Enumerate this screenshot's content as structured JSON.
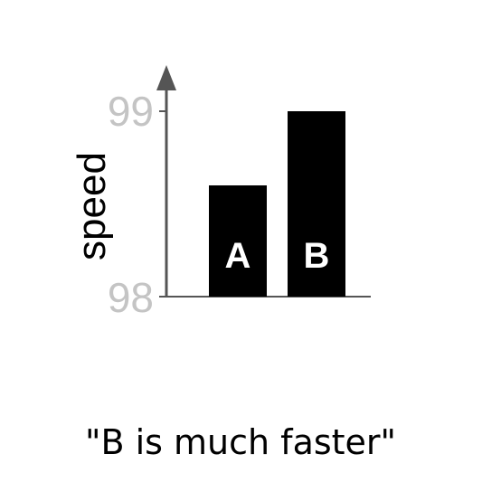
{
  "chart_data": {
    "type": "bar",
    "categories": [
      "A",
      "B"
    ],
    "values": [
      98.6,
      99
    ],
    "ylabel": "speed",
    "ylim": [
      98,
      99.25
    ],
    "yticks": [
      "98",
      "99"
    ],
    "grid": false,
    "legend": "none",
    "bar_labels_inside": true,
    "caption": "\"B is much faster\""
  },
  "colors": {
    "bar": "#000000",
    "axis": "#555555",
    "tick_label": "#c4c4c4",
    "bar_label": "#ffffff"
  }
}
